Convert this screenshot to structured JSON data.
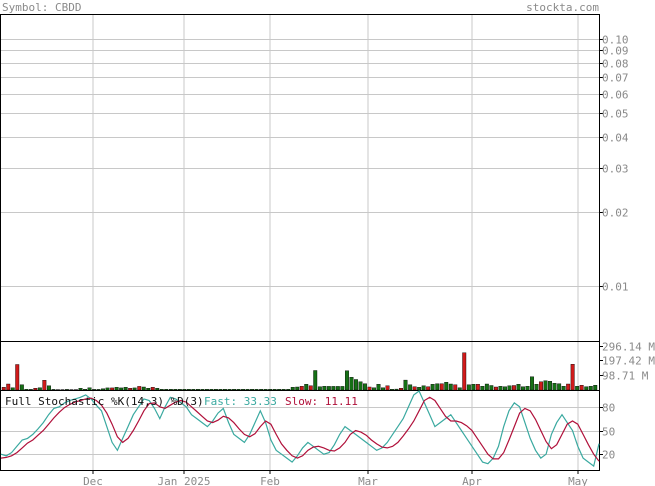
{
  "header": {
    "symbol_text": "Symbol: CBDD",
    "site_text": "stockta.com"
  },
  "chart_data": [
    {
      "type": "line",
      "panel": "price",
      "scale": "log",
      "y_ticks": [
        "0.10",
        "0.09",
        "0.08",
        "0.07",
        "0.06",
        "0.05",
        "0.04",
        "0.03",
        "0.02",
        "0.01"
      ],
      "y_tick_values": [
        0.1,
        0.09,
        0.08,
        0.07,
        0.06,
        0.05,
        0.04,
        0.03,
        0.02,
        0.01
      ],
      "ylim": [
        0.006,
        0.125
      ],
      "grid": true,
      "series": []
    },
    {
      "type": "bar",
      "panel": "volume",
      "y_ticks": [
        "296.14 M",
        "197.42 M",
        "98.71 M"
      ],
      "y_tick_values": [
        296.14,
        197.42,
        98.71
      ],
      "unit": "M",
      "ylim": [
        0,
        320
      ],
      "colors": {
        "up": "#157015",
        "down": "#d01a1a"
      },
      "values": [
        18,
        40,
        15,
        170,
        35,
        5,
        4,
        12,
        15,
        65,
        28,
        4,
        3,
        3,
        4,
        3,
        3,
        12,
        5,
        15,
        4,
        4,
        8,
        14,
        14,
        18,
        14,
        18,
        12,
        14,
        24,
        20,
        12,
        18,
        12,
        5,
        5,
        5,
        5,
        5,
        5,
        5,
        5,
        5,
        5,
        5,
        5,
        5,
        5,
        5,
        5,
        5,
        5,
        5,
        5,
        5,
        5,
        5,
        5,
        5,
        5,
        5,
        5,
        5,
        18,
        20,
        25,
        38,
        28,
        130,
        22,
        25,
        24,
        24,
        24,
        24,
        128,
        85,
        70,
        55,
        42,
        20,
        15,
        38,
        15,
        28,
        5,
        6,
        12,
        66,
        35,
        22,
        18,
        28,
        22,
        38,
        42,
        42,
        52,
        40,
        35,
        15,
        248,
        35,
        38,
        38,
        25,
        40,
        30,
        20,
        25,
        22,
        28,
        30,
        38,
        22,
        25,
        88,
        38,
        55,
        62,
        58,
        45,
        42,
        25,
        40,
        172,
        25,
        32,
        22,
        25,
        32
      ],
      "directions": [
        "d",
        "d",
        "u",
        "d",
        "u",
        "u",
        "u",
        "d",
        "u",
        "d",
        "u",
        "u",
        "u",
        "u",
        "u",
        "u",
        "u",
        "u",
        "u",
        "u",
        "u",
        "u",
        "u",
        "u",
        "d",
        "u",
        "u",
        "u",
        "d",
        "u",
        "d",
        "u",
        "u",
        "d",
        "u",
        "u",
        "u",
        "u",
        "u",
        "u",
        "u",
        "u",
        "u",
        "u",
        "u",
        "u",
        "u",
        "u",
        "u",
        "u",
        "u",
        "u",
        "u",
        "u",
        "u",
        "u",
        "u",
        "u",
        "u",
        "u",
        "u",
        "u",
        "u",
        "u",
        "u",
        "u",
        "d",
        "u",
        "d",
        "u",
        "u",
        "u",
        "u",
        "u",
        "u",
        "u",
        "u",
        "u",
        "u",
        "u",
        "u",
        "d",
        "u",
        "u",
        "u",
        "d",
        "u",
        "u",
        "d",
        "u",
        "u",
        "d",
        "u",
        "u",
        "d",
        "u",
        "u",
        "d",
        "u",
        "u",
        "d",
        "u",
        "d",
        "u",
        "u",
        "d",
        "u",
        "u",
        "u",
        "d",
        "u",
        "u",
        "u",
        "d",
        "u",
        "u",
        "u",
        "u",
        "u",
        "d",
        "u",
        "u",
        "u",
        "u",
        "u",
        "d",
        "d",
        "u",
        "d",
        "u",
        "u",
        "u"
      ]
    },
    {
      "type": "line",
      "panel": "stochastic",
      "title": "Full Stochastic %K(14,3) %D(3)",
      "fast_label": "Fast: 33.33",
      "slow_label": "Slow: 11.11",
      "y_ticks": [
        "80",
        "50",
        "20"
      ],
      "y_tick_values": [
        80,
        50,
        20
      ],
      "ylim": [
        0,
        100
      ],
      "colors": {
        "fast": "#3aa9a0",
        "slow": "#b0103a"
      },
      "series": [
        {
          "name": "Fast",
          "values": [
            20,
            18,
            22,
            30,
            38,
            40,
            45,
            52,
            60,
            70,
            78,
            80,
            85,
            88,
            90,
            92,
            95,
            90,
            82,
            75,
            55,
            35,
            25,
            40,
            55,
            70,
            80,
            90,
            88,
            78,
            65,
            80,
            92,
            90,
            85,
            80,
            70,
            65,
            60,
            55,
            62,
            72,
            78,
            60,
            45,
            40,
            35,
            45,
            60,
            75,
            60,
            38,
            25,
            20,
            15,
            10,
            18,
            28,
            35,
            30,
            25,
            20,
            22,
            32,
            45,
            55,
            50,
            45,
            40,
            35,
            30,
            25,
            28,
            35,
            45,
            55,
            65,
            80,
            95,
            100,
            85,
            70,
            55,
            60,
            65,
            70,
            60,
            50,
            40,
            30,
            20,
            10,
            8,
            15,
            30,
            55,
            75,
            85,
            80,
            60,
            40,
            25,
            15,
            20,
            45,
            60,
            70,
            60,
            50,
            30,
            15,
            10,
            5,
            33.33
          ]
        },
        {
          "name": "Slow",
          "values": [
            15,
            16,
            18,
            22,
            28,
            34,
            38,
            44,
            50,
            58,
            66,
            73,
            79,
            83,
            86,
            88,
            90,
            91,
            88,
            82,
            72,
            58,
            42,
            35,
            40,
            50,
            62,
            75,
            84,
            85,
            80,
            78,
            82,
            86,
            88,
            86,
            80,
            74,
            68,
            62,
            60,
            63,
            68,
            66,
            60,
            52,
            45,
            42,
            46,
            55,
            62,
            58,
            45,
            33,
            25,
            18,
            15,
            18,
            25,
            29,
            30,
            28,
            25,
            24,
            28,
            35,
            45,
            50,
            48,
            44,
            38,
            33,
            29,
            28,
            30,
            35,
            43,
            52,
            62,
            75,
            88,
            92,
            88,
            78,
            68,
            62,
            62,
            60,
            56,
            50,
            40,
            30,
            20,
            14,
            14,
            22,
            38,
            55,
            72,
            78,
            75,
            64,
            50,
            36,
            27,
            32,
            45,
            58,
            62,
            58,
            45,
            32,
            20,
            11.11
          ]
        }
      ]
    }
  ],
  "x_axis": {
    "labels": [
      "Dec",
      "Jan 2025",
      "Feb",
      "Mar",
      "Apr",
      "May"
    ]
  }
}
